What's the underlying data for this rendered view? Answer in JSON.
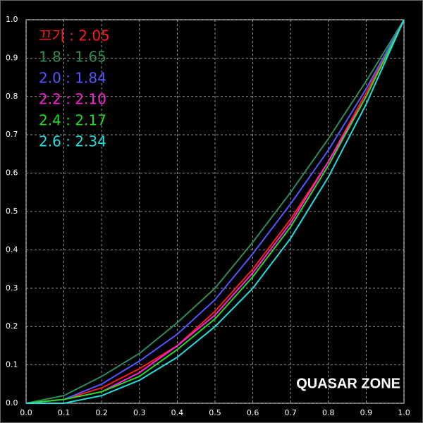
{
  "chart_data": {
    "type": "line",
    "x": [
      0,
      0.1,
      0.2,
      0.3,
      0.4,
      0.5,
      0.6,
      0.7,
      0.8,
      0.9,
      1
    ],
    "series": [
      {
        "name": "끄기 : 2.05",
        "color": "#ff1a1a",
        "values": [
          0,
          0.01,
          0.04,
          0.09,
          0.15,
          0.24,
          0.35,
          0.48,
          0.63,
          0.81,
          1
        ]
      },
      {
        "name": "1.8 : 1.65",
        "color": "#2e8b57",
        "values": [
          0,
          0.02,
          0.07,
          0.13,
          0.21,
          0.3,
          0.42,
          0.55,
          0.69,
          0.84,
          1
        ]
      },
      {
        "name": "2.0 : 1.84",
        "color": "#5555ff",
        "values": [
          0,
          0.01,
          0.05,
          0.11,
          0.18,
          0.27,
          0.39,
          0.52,
          0.66,
          0.82,
          1
        ]
      },
      {
        "name": "2.2 : 2.10",
        "color": "#ff22dd",
        "values": [
          0,
          0.01,
          0.03,
          0.08,
          0.15,
          0.23,
          0.34,
          0.47,
          0.63,
          0.8,
          1
        ]
      },
      {
        "name": "2.4 : 2.17",
        "color": "#22dd22",
        "values": [
          0,
          0.01,
          0.03,
          0.07,
          0.14,
          0.22,
          0.33,
          0.46,
          0.62,
          0.8,
          1
        ]
      },
      {
        "name": "2.6 : 2.34",
        "color": "#22dddd",
        "values": [
          0,
          0,
          0.02,
          0.06,
          0.12,
          0.2,
          0.3,
          0.43,
          0.59,
          0.78,
          1
        ]
      }
    ],
    "xlim": [
      0,
      1
    ],
    "ylim": [
      0,
      1
    ],
    "xticks": [
      {
        "value": 0,
        "label": "0.0"
      },
      0.1,
      0.2,
      0.3,
      0.4,
      0.5,
      0.6,
      0.7,
      0.8,
      0.9,
      {
        "value": 1,
        "label": "1.0"
      }
    ],
    "yticks": [
      {
        "value": 0,
        "label": "0.0"
      },
      0.1,
      0.2,
      0.3,
      0.4,
      0.5,
      0.6,
      0.7,
      0.8,
      0.9,
      {
        "value": 1,
        "label": "1.0"
      }
    ],
    "grid": true,
    "watermark": "QUASAR ZONE"
  }
}
